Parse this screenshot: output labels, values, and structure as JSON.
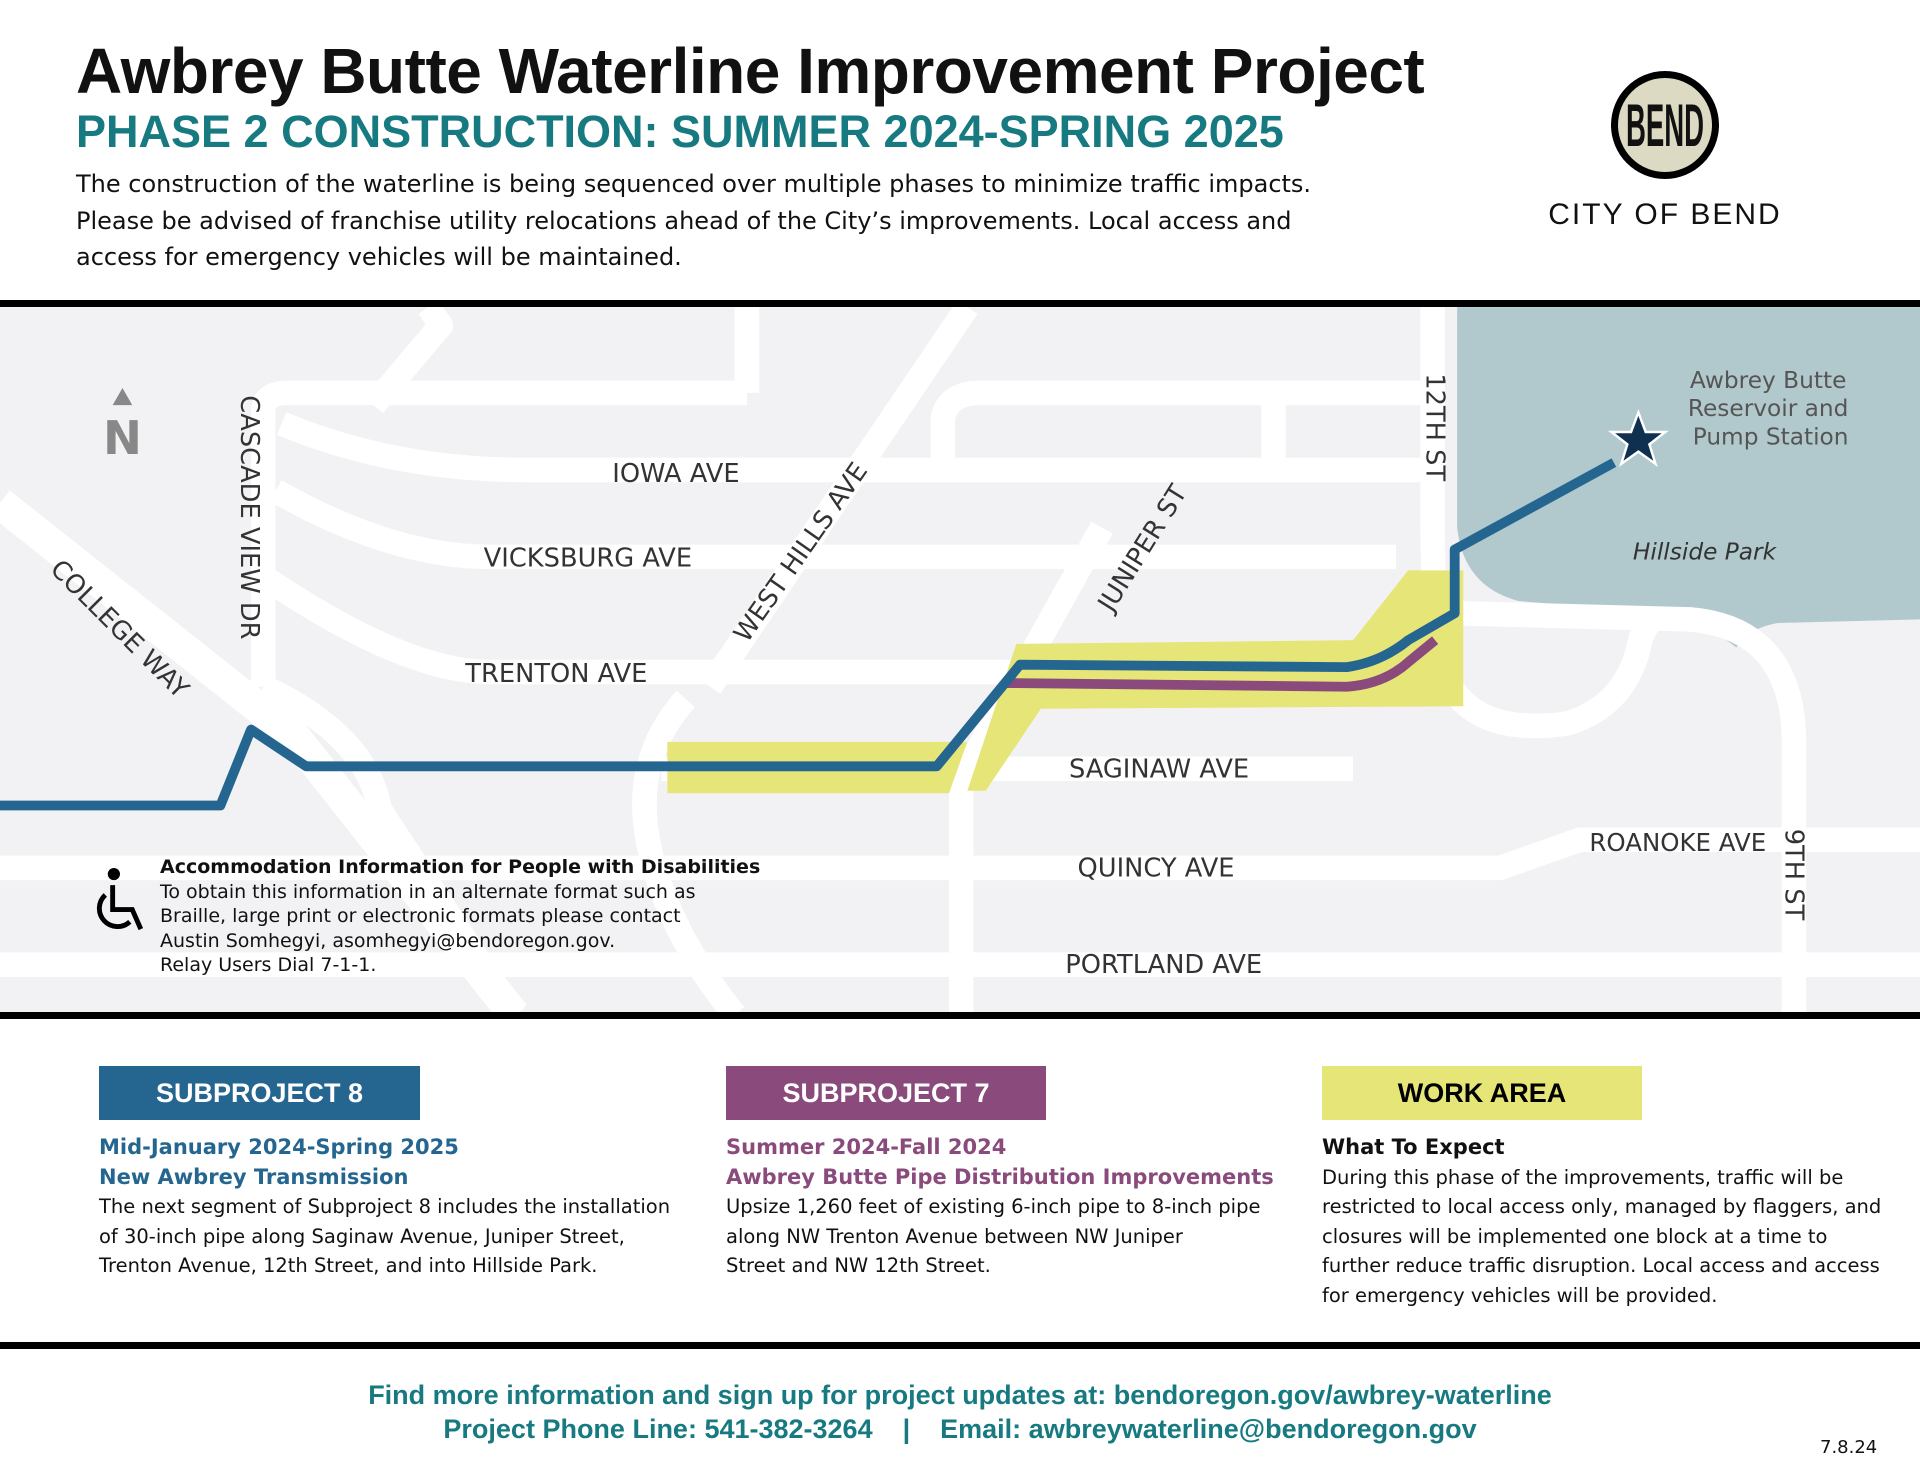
{
  "header": {
    "title": "Awbrey Butte Waterline Improvement Project",
    "subtitle": "PHASE 2 CONSTRUCTION: SUMMER 2024-SPRING 2025",
    "intro": [
      "The construction of the waterline is being sequenced over multiple phases to minimize traffic impacts.",
      "Please be advised of franchise utility relocations ahead of the City’s improvements. Local access and",
      "access for emergency vehicles will be maintained."
    ],
    "logo_text": "BEND",
    "org": "CITY OF BEND"
  },
  "map": {
    "north": "N",
    "streets": {
      "college": "COLLEGE WAY",
      "cascade": "CASCADE VIEW DR",
      "iowa": "IOWA AVE",
      "vicksburg": "VICKSBURG AVE",
      "trenton": "TRENTON AVE",
      "westhills": "WEST HILLS AVE",
      "juniper": "JUNIPER ST",
      "twelfth": "12TH ST",
      "saginaw": "SAGINAW AVE",
      "quincy": "QUINCY AVE",
      "portland": "PORTLAND AVE",
      "roanoke": "ROANOKE AVE",
      "ninth": "9TH ST"
    },
    "reservoir": [
      "Awbrey Butte",
      "Reservoir and",
      "Pump Station"
    ],
    "park": "Hillside Park",
    "accommodation": {
      "title": "Accommodation Information for People with Disabilities",
      "lines": [
        "To obtain this information in an alternate format such as",
        "Braille, large print or electronic formats please contact",
        "Austin Somhegyi, asomhegyi@bendoregon.gov.",
        "Relay Users Dial 7-1-1."
      ]
    },
    "colors": {
      "subproject8": "#256690",
      "subproject7": "#8a4b7c",
      "work_area": "#e6e578",
      "park": "#b1c9cc"
    }
  },
  "legend": [
    {
      "label": "SUBPROJECT 8",
      "dates": "Mid-January 2024-Spring 2025",
      "name": "New Awbrey Transmission",
      "body": [
        "The next segment of Subproject 8 includes the installation",
        "of 30-inch pipe along Saginaw Avenue, Juniper Street,",
        "Trenton Avenue, 12th Street, and into Hillside Park."
      ]
    },
    {
      "label": "SUBPROJECT 7",
      "dates": "Summer 2024-Fall 2024",
      "name": "Awbrey Butte Pipe Distribution Improvements",
      "body": [
        "Upsize 1,260 feet of existing 6-inch pipe to 8-inch pipe",
        "along NW Trenton Avenue between NW Juniper",
        "Street and NW 12th Street."
      ]
    },
    {
      "label": "WORK AREA",
      "name": "What To Expect",
      "body": [
        "During this phase of the improvements, traffic will be",
        "restricted to local access only, managed by flaggers, and",
        "closures will be implemented one block at a time to",
        "further reduce traffic disruption. Local access and access",
        "for emergency vehicles will be provided."
      ]
    }
  ],
  "footer": {
    "line1": "Find more information and sign up for project updates at: bendoregon.gov/awbrey-waterline",
    "line2": "Project Phone Line: 541-382-3264    |    Email: awbreywaterline@bendoregon.gov",
    "date": "7.8.24"
  }
}
